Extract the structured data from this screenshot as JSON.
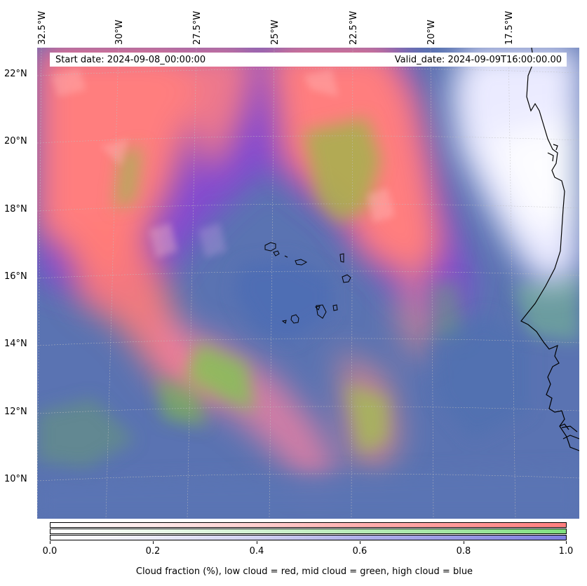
{
  "map": {
    "start_date": "Start date: 2024-09-08_00:00:00",
    "valid_date": "Valid_date: 2024-09-09T16:00:00.00",
    "lon_labels": [
      "32.5°W",
      "30°W",
      "27.5°W",
      "25°W",
      "22.5°W",
      "20°W",
      "17.5°W"
    ],
    "lat_labels": [
      "22°N",
      "20°N",
      "18°N",
      "16°N",
      "14°N",
      "12°N",
      "10°N"
    ],
    "gridlines": true,
    "colors": {
      "low_cloud": "#ff7f7f",
      "mid_cloud": "#7fe57f",
      "high_cloud": "#7f7fe5",
      "clear_sky": "#ffffff",
      "combined_low_high": "#8a3fd0",
      "coastline": "#000000"
    }
  },
  "colorbar": {
    "ticks": [
      "0.0",
      "0.2",
      "0.4",
      "0.6",
      "0.8",
      "1.0"
    ],
    "title": "Cloud fraction (%), low cloud = red, mid cloud = green, high cloud = blue",
    "range": [
      0.0,
      1.0
    ]
  }
}
